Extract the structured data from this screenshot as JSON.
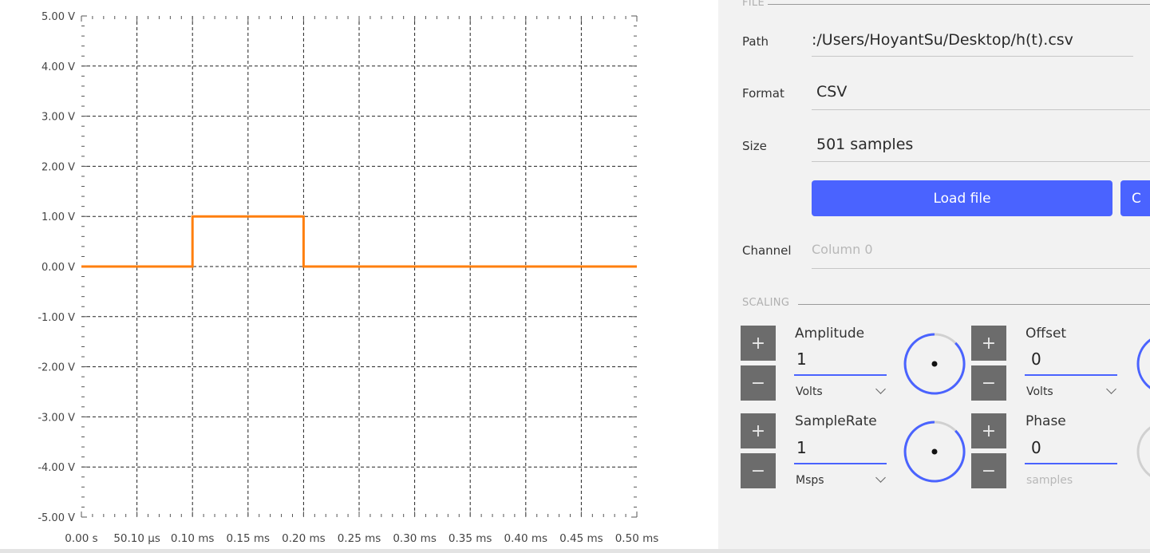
{
  "chart_data": {
    "type": "line",
    "title": "",
    "xlabel": "",
    "ylabel": "",
    "ylim": [
      -5,
      5
    ],
    "xlim": [
      0,
      0.5
    ],
    "y_ticks": [
      "5.00 V",
      "4.00 V",
      "3.00 V",
      "2.00 V",
      "1.00 V",
      "0.00 V",
      "-1.00 V",
      "-2.00 V",
      "-3.00 V",
      "-4.00 V",
      "-5.00 V"
    ],
    "x_ticks": [
      "0.00 s",
      "50.10 µs",
      "0.10 ms",
      "0.15 ms",
      "0.20 ms",
      "0.25 ms",
      "0.30 ms",
      "0.35 ms",
      "0.40 ms",
      "0.45 ms",
      "0.50 ms"
    ],
    "grid": true,
    "series": [
      {
        "color": "#ff7f0e",
        "x": [
          0,
          0.1,
          0.1,
          0.2,
          0.2,
          0.5
        ],
        "y": [
          0,
          0,
          1,
          1,
          0,
          0
        ]
      }
    ]
  },
  "file": {
    "title": "FILE",
    "path_label": "Path",
    "path_value": ":/Users/HoyantSu/Desktop/h(t).csv",
    "format_label": "Format",
    "format_value": "CSV",
    "size_label": "Size",
    "size_value": "501 samples",
    "load_button": "Load file",
    "second_button": "C",
    "channel_label": "Channel",
    "channel_placeholder": "Column 0"
  },
  "scaling": {
    "title": "SCALING",
    "plus": "+",
    "minus": "−",
    "amplitude": {
      "label": "Amplitude",
      "value": "1",
      "unit": "Volts"
    },
    "offset": {
      "label": "Offset",
      "value": "0",
      "unit": "Volts"
    },
    "samplerate": {
      "label": "SampleRate",
      "value": "1",
      "unit": "Msps"
    },
    "phase": {
      "label": "Phase",
      "value": "0",
      "unit": "samples"
    }
  },
  "colors": {
    "accent": "#4a63ff",
    "trace": "#ff7f0e",
    "panel": "#f2f2f2"
  }
}
